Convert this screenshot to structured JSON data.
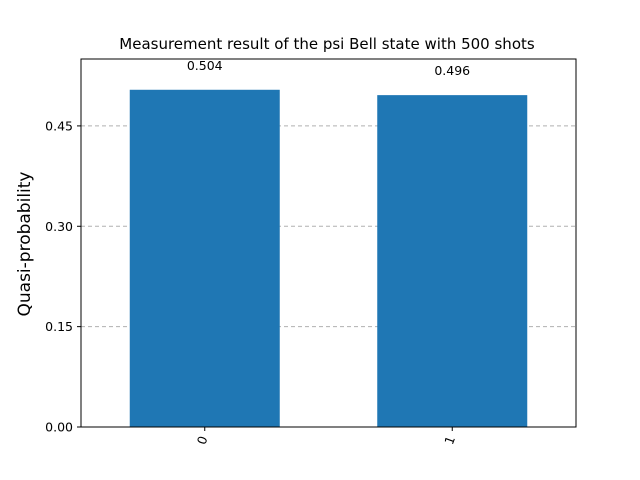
{
  "chart_data": {
    "type": "bar",
    "title": "Measurement result of the psi Bell state with 500 shots",
    "xlabel": "",
    "ylabel": "Quasi-probability",
    "categories": [
      "0",
      "1"
    ],
    "values": [
      0.504,
      0.496
    ],
    "value_labels": [
      "0.504",
      "0.496"
    ],
    "ylim": [
      0,
      0.55
    ],
    "yticks": [
      0.0,
      0.15,
      0.3,
      0.45
    ],
    "ytick_labels": [
      "0.00",
      "0.15",
      "0.30",
      "0.45"
    ],
    "grid": "y-dashed",
    "legend": "none",
    "bar_color": "#1f77b4",
    "grid_color": "#b0b0b0"
  }
}
